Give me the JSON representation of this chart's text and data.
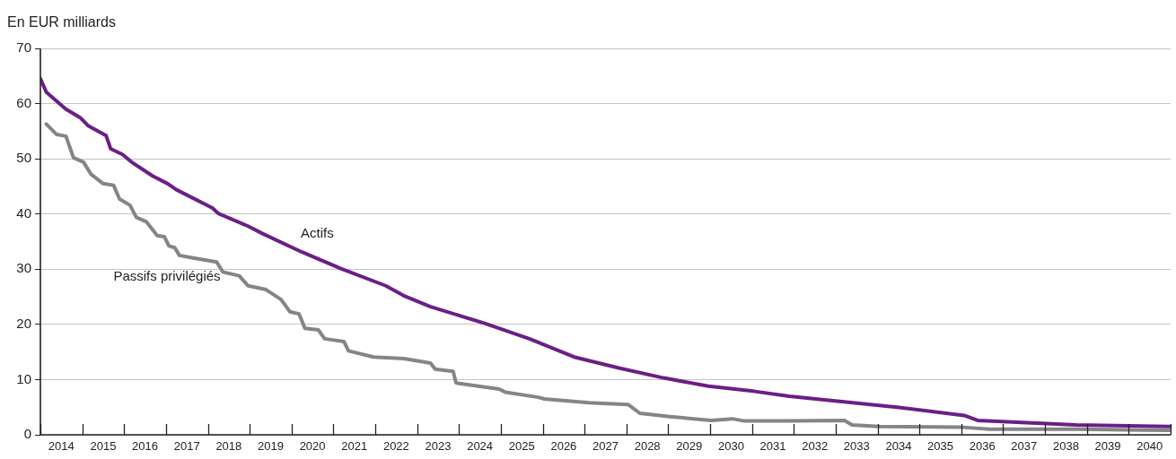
{
  "chart_data": {
    "type": "line",
    "ylabel": "En EUR milliards",
    "xlim": [
      2014,
      2041
    ],
    "xticks": [
      {
        "value": 2014,
        "label": null
      },
      {
        "value": 2014.5,
        "label": "2014"
      },
      {
        "value": 2015,
        "label": null
      },
      {
        "value": 2015.5,
        "label": "2015"
      },
      {
        "value": 2016,
        "label": null
      },
      {
        "value": 2016.5,
        "label": "2016"
      },
      {
        "value": 2017,
        "label": null
      },
      {
        "value": 2017.5,
        "label": "2017"
      },
      {
        "value": 2018,
        "label": null
      },
      {
        "value": 2018.5,
        "label": "2018"
      },
      {
        "value": 2019,
        "label": null
      },
      {
        "value": 2019.5,
        "label": "2019"
      },
      {
        "value": 2020,
        "label": null
      },
      {
        "value": 2020.5,
        "label": "2020"
      },
      {
        "value": 2021,
        "label": null
      },
      {
        "value": 2021.5,
        "label": "2021"
      },
      {
        "value": 2022,
        "label": null
      },
      {
        "value": 2022.5,
        "label": "2022"
      },
      {
        "value": 2023,
        "label": null
      },
      {
        "value": 2023.5,
        "label": "2023"
      },
      {
        "value": 2024,
        "label": null
      },
      {
        "value": 2024.5,
        "label": "2024"
      },
      {
        "value": 2025,
        "label": null
      },
      {
        "value": 2025.5,
        "label": "2025"
      },
      {
        "value": 2026,
        "label": null
      },
      {
        "value": 2026.5,
        "label": "2026"
      },
      {
        "value": 2027,
        "label": null
      },
      {
        "value": 2027.5,
        "label": "2027"
      },
      {
        "value": 2028,
        "label": null
      },
      {
        "value": 2028.5,
        "label": "2028"
      },
      {
        "value": 2029,
        "label": null
      },
      {
        "value": 2029.5,
        "label": "2029"
      },
      {
        "value": 2030,
        "label": null
      },
      {
        "value": 2030.5,
        "label": "2030"
      },
      {
        "value": 2031,
        "label": null
      },
      {
        "value": 2031.5,
        "label": "2031"
      },
      {
        "value": 2032,
        "label": null
      },
      {
        "value": 2032.5,
        "label": "2032"
      },
      {
        "value": 2033,
        "label": null
      },
      {
        "value": 2033.5,
        "label": "2033"
      },
      {
        "value": 2034,
        "label": null
      },
      {
        "value": 2034.5,
        "label": "2034"
      },
      {
        "value": 2035,
        "label": null
      },
      {
        "value": 2035.5,
        "label": "2035"
      },
      {
        "value": 2036,
        "label": null
      },
      {
        "value": 2036.5,
        "label": "2036"
      },
      {
        "value": 2037,
        "label": null
      },
      {
        "value": 2037.5,
        "label": "2037"
      },
      {
        "value": 2038,
        "label": null
      },
      {
        "value": 2038.5,
        "label": "2038"
      },
      {
        "value": 2039,
        "label": null
      },
      {
        "value": 2039.5,
        "label": "2039"
      },
      {
        "value": 2040,
        "label": null
      },
      {
        "value": 2040.5,
        "label": "2040"
      },
      {
        "value": 2041,
        "label": null
      }
    ],
    "ylim": [
      0,
      70
    ],
    "yticks": [
      0,
      10,
      20,
      30,
      40,
      50,
      60,
      70
    ],
    "grid": "y",
    "legend": false,
    "marker": "none",
    "line_style": "solid",
    "series": [
      {
        "name": "Actifs",
        "color": "#6b1f86",
        "x": [
          2014.0,
          2014.14,
          2014.61,
          2014.96,
          2015.14,
          2015.57,
          2015.68,
          2015.96,
          2016.18,
          2016.68,
          2017.04,
          2017.25,
          2018.11,
          2018.25,
          2018.96,
          2019.32,
          2020.25,
          2021.18,
          2022.25,
          2022.68,
          2023.32,
          2024.61,
          2025.68,
          2026.75,
          2027.82,
          2028.89,
          2029.96,
          2031.03,
          2031.89,
          2034.46,
          2036.07,
          2036.39,
          2038.75,
          2041.0
        ],
        "values": [
          64.5,
          62.1,
          59.0,
          57.4,
          56.0,
          54.2,
          51.8,
          50.8,
          49.4,
          46.9,
          45.5,
          44.4,
          41.1,
          40.1,
          37.8,
          36.4,
          33.1,
          30.1,
          27.0,
          25.2,
          23.2,
          20.2,
          17.4,
          14.1,
          12.1,
          10.3,
          8.8,
          7.9,
          7.0,
          5.0,
          3.5,
          2.6,
          1.8,
          1.5
        ]
      },
      {
        "name": "Passifs privilégiés",
        "color": "#858585",
        "x": [
          2014.14,
          2014.39,
          2014.61,
          2014.79,
          2015.03,
          2015.21,
          2015.5,
          2015.75,
          2015.89,
          2016.14,
          2016.29,
          2016.53,
          2016.79,
          2016.96,
          2017.07,
          2017.21,
          2017.32,
          2017.68,
          2018.21,
          2018.36,
          2018.75,
          2018.96,
          2019.39,
          2019.75,
          2019.96,
          2020.18,
          2020.32,
          2020.64,
          2020.79,
          2021.25,
          2021.36,
          2021.96,
          2022.68,
          2023.32,
          2023.43,
          2023.86,
          2023.93,
          2024.96,
          2025.11,
          2025.89,
          2026.04,
          2027.11,
          2028.04,
          2028.32,
          2029.04,
          2030.03,
          2030.53,
          2030.82,
          2031.89,
          2033.21,
          2033.39,
          2034.03,
          2035.96,
          2036.68,
          2038.82,
          2041.0
        ],
        "values": [
          56.3,
          54.4,
          54.1,
          50.2,
          49.4,
          47.2,
          45.5,
          45.2,
          42.7,
          41.6,
          39.4,
          38.6,
          36.1,
          35.9,
          34.2,
          33.9,
          32.5,
          32.0,
          31.3,
          29.5,
          28.8,
          27.0,
          26.3,
          24.5,
          22.3,
          21.9,
          19.3,
          19.0,
          17.4,
          16.9,
          15.2,
          14.1,
          13.8,
          13.0,
          11.9,
          11.5,
          9.4,
          8.3,
          7.7,
          6.8,
          6.5,
          5.8,
          5.5,
          3.9,
          3.3,
          2.6,
          2.9,
          2.5,
          2.5,
          2.6,
          1.8,
          1.5,
          1.4,
          1.0,
          1.0,
          0.8
        ]
      }
    ]
  }
}
